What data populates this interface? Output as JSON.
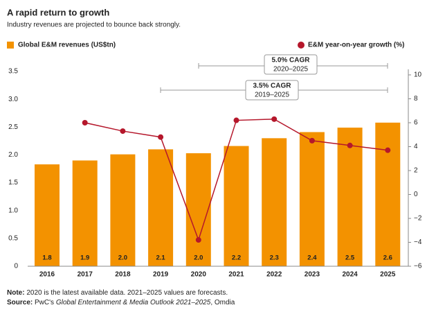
{
  "chart_data": {
    "type": "bar-line",
    "title": "A rapid return to growth",
    "subtitle": "Industry revenues are projected to bounce back strongly.",
    "categories": [
      "2016",
      "2017",
      "2018",
      "2019",
      "2020",
      "2021",
      "2022",
      "2023",
      "2024",
      "2025"
    ],
    "series": [
      {
        "name": "Global E&M revenues (US$tn)",
        "type": "bar",
        "color": "#f39200",
        "axis": "y",
        "values": [
          1.83,
          1.9,
          2.01,
          2.1,
          2.03,
          2.16,
          2.3,
          2.41,
          2.49,
          2.58
        ],
        "value_labels": [
          "1.8",
          "1.9",
          "2.0",
          "2.1",
          "2.0",
          "2.2",
          "2.3",
          "2.4",
          "2.5",
          "2.6"
        ]
      },
      {
        "name": "E&M year-on-year growth (%)",
        "type": "line",
        "color": "#b5172b",
        "axis": "y2",
        "values": [
          null,
          6.0,
          5.3,
          4.8,
          -3.8,
          6.2,
          6.3,
          4.5,
          4.1,
          3.7
        ]
      }
    ],
    "ylim": [
      0,
      3.5
    ],
    "yticks": [
      0,
      0.5,
      {
        "value": 1,
        "label": "1.0"
      },
      1.5,
      {
        "value": 2,
        "label": "2.0"
      },
      2.5,
      {
        "value": 3,
        "label": "3.0"
      },
      3.5
    ],
    "y2lim": [
      -6,
      10
    ],
    "y2ticks": [
      {
        "value": -6,
        "label": "−6"
      },
      {
        "value": -4,
        "label": "−4"
      },
      {
        "value": -2,
        "label": "−2"
      },
      0,
      2,
      4,
      6,
      8,
      10
    ],
    "annotations": [
      {
        "title": "5.0% CAGR",
        "period": "2020–2025"
      },
      {
        "title": "3.5% CAGR",
        "period": "2019–2025"
      }
    ],
    "note": {
      "label": "Note:",
      "text": "2020 is the latest available data. 2021–2025 values are forecasts."
    },
    "source": {
      "label": "Source:",
      "before": "PwC's",
      "title": "Global Entertainment & Media Outlook 2021–2025",
      "after": ", Omdia"
    }
  }
}
